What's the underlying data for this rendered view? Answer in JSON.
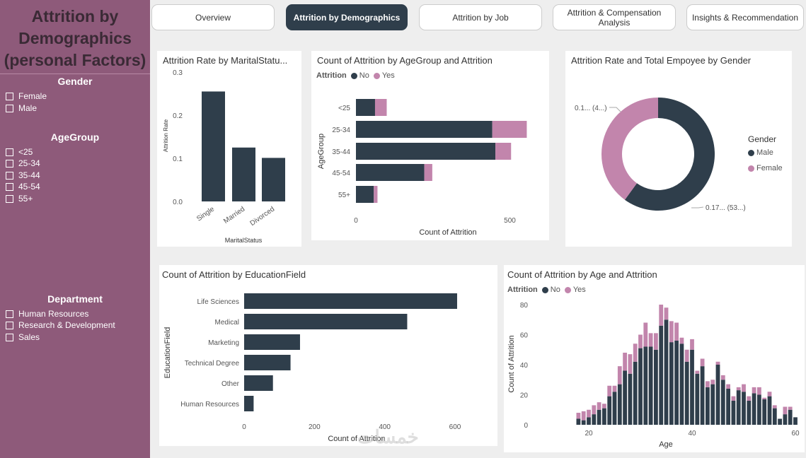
{
  "sidebar": {
    "title_lines": [
      "Attrition by",
      "Demographics",
      "(personal Factors)"
    ],
    "filters": [
      {
        "heading": "Gender",
        "items": [
          "Female",
          "Male"
        ]
      },
      {
        "heading": "AgeGroup",
        "items": [
          "<25",
          "25-34",
          "35-44",
          "45-54",
          "55+"
        ]
      },
      {
        "heading": "Department",
        "items": [
          "Human Resources",
          "Research & Development",
          "Sales"
        ]
      }
    ]
  },
  "nav": {
    "tabs": [
      {
        "label": "Overview",
        "active": false
      },
      {
        "label": "Attrition by Demographics",
        "active": true
      },
      {
        "label": "Attrition by Job",
        "active": false
      },
      {
        "label": "Attrition & Compensation Analysis",
        "active": false
      },
      {
        "label": "Insights & Recommendation",
        "active": false
      }
    ]
  },
  "colors": {
    "sidebar": "#8e5a7a",
    "no": "#2f3e4b",
    "yes": "#c285ac",
    "active_tab": "#2f3e4b"
  },
  "watermark": "خمسات",
  "chart_data": [
    {
      "type": "bar",
      "title": "Attrition Rate by MaritalStatu...",
      "categories": [
        "Single",
        "Married",
        "Divorced"
      ],
      "values": [
        0.255,
        0.125,
        0.101
      ],
      "xlabel": "MaritalStatus",
      "ylabel": "Attrition Rate",
      "ylim": [
        0,
        0.3
      ],
      "yticks": [
        "0.0",
        "0.1",
        "0.2",
        "0.3"
      ]
    },
    {
      "type": "bar",
      "orientation": "horizontal",
      "stacked": true,
      "title": "Count of Attrition by AgeGroup and Attrition",
      "legend_title": "Attrition",
      "categories": [
        "<25",
        "25-34",
        "35-44",
        "45-54",
        "55+"
      ],
      "series": [
        {
          "name": "No",
          "values": [
            62,
            443,
            453,
            222,
            58
          ]
        },
        {
          "name": "Yes",
          "values": [
            38,
            112,
            51,
            26,
            12
          ]
        }
      ],
      "xlabel": "Count of Attrition",
      "ylabel": "AgeGroup",
      "xlim": [
        0,
        600
      ],
      "xticks": [
        "0",
        "500"
      ]
    },
    {
      "type": "pie",
      "donut": true,
      "title": "Attrition Rate and Total Empoyee by Gender",
      "legend_title": "Gender",
      "categories": [
        "Male",
        "Female"
      ],
      "values": [
        0.6,
        0.4
      ],
      "data_labels": [
        "0.17... (53...)",
        "0.1... (4...)"
      ]
    },
    {
      "type": "bar",
      "orientation": "horizontal",
      "title": "Count of Attrition by EducationField",
      "categories": [
        "Life Sciences",
        "Medical",
        "Marketing",
        "Technical Degree",
        "Other",
        "Human Resources"
      ],
      "values": [
        606,
        464,
        159,
        132,
        82,
        27
      ],
      "xlabel": "Count of Attrition",
      "ylabel": "EducationField",
      "xlim": [
        0,
        650
      ],
      "xticks": [
        "0",
        "200",
        "400",
        "600"
      ]
    },
    {
      "type": "bar",
      "stacked": true,
      "title": "Count of Attrition by Age and Attrition",
      "legend_title": "Attrition",
      "x": [
        18,
        19,
        20,
        21,
        22,
        23,
        24,
        25,
        26,
        27,
        28,
        29,
        30,
        31,
        32,
        33,
        34,
        35,
        36,
        37,
        38,
        39,
        40,
        41,
        42,
        43,
        44,
        45,
        46,
        47,
        48,
        49,
        50,
        51,
        52,
        53,
        54,
        55,
        56,
        57,
        58,
        59,
        60
      ],
      "series": [
        {
          "name": "No",
          "values": [
            4,
            3,
            5,
            7,
            10,
            11,
            19,
            22,
            27,
            36,
            34,
            42,
            51,
            52,
            52,
            50,
            66,
            70,
            55,
            56,
            54,
            42,
            50,
            34,
            39,
            25,
            27,
            40,
            30,
            24,
            16,
            23,
            22,
            16,
            21,
            20,
            17,
            19,
            11,
            4,
            7,
            10,
            5
          ]
        },
        {
          "name": "Yes",
          "values": [
            4,
            6,
            5,
            6,
            5,
            3,
            7,
            4,
            12,
            12,
            13,
            12,
            9,
            16,
            9,
            11,
            14,
            8,
            14,
            12,
            4,
            8,
            7,
            2,
            5,
            4,
            3,
            2,
            3,
            3,
            3,
            2,
            5,
            3,
            4,
            5,
            1,
            3,
            2,
            0,
            5,
            2,
            0
          ]
        }
      ],
      "xlabel": "Age",
      "ylabel": "Count of Attrition",
      "ylim": [
        0,
        80
      ],
      "yticks": [
        "0",
        "20",
        "40",
        "60",
        "80"
      ],
      "xticks": [
        "20",
        "40",
        "60"
      ]
    }
  ]
}
